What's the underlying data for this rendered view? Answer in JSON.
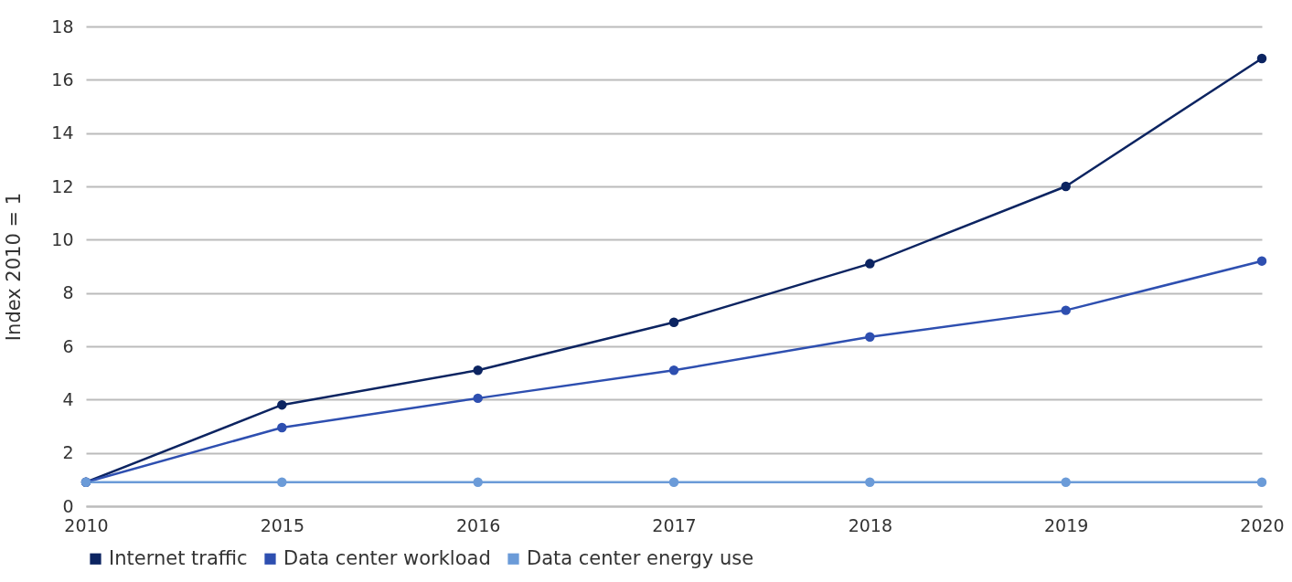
{
  "chart_data": {
    "type": "line",
    "ylabel": "Index 2010 = 1",
    "categories": [
      "2010",
      "2015",
      "2016",
      "2017",
      "2018",
      "2019",
      "2020"
    ],
    "series": [
      {
        "name": "Internet traffic",
        "color": "#0c2461",
        "values": [
          0.9,
          3.8,
          5.1,
          6.9,
          9.1,
          12.0,
          16.8
        ]
      },
      {
        "name": "Data center workload",
        "color": "#2e4fb0",
        "values": [
          0.9,
          2.95,
          4.05,
          5.1,
          6.35,
          7.35,
          9.2
        ]
      },
      {
        "name": "Data center energy use",
        "color": "#6b9bd8",
        "values": [
          0.9,
          0.9,
          0.9,
          0.9,
          0.9,
          0.9,
          0.9
        ]
      }
    ],
    "ylim": [
      0,
      18
    ],
    "yticks": [
      0,
      2,
      4,
      6,
      8,
      10,
      12,
      14,
      16,
      18
    ],
    "grid": "y",
    "legend": "bottom left",
    "marker": "circle",
    "line_style": "solid"
  }
}
